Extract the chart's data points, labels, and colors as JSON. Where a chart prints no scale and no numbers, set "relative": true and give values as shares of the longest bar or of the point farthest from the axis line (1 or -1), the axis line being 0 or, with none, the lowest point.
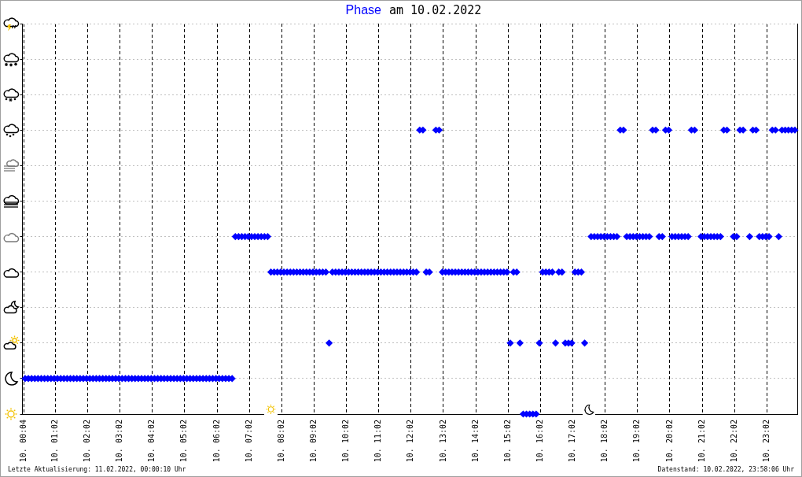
{
  "chart_data": {
    "type": "scatter",
    "title": "am 10.02.2022",
    "annotations": [
      "Letzte Aktualisierung: 11.02.2022, 00:00:10 Uhr",
      "Datenstand: 10.02.2022, 23:58:06 Uhr"
    ],
    "marker": "diamond",
    "grid": true,
    "relative": true,
    "xlim": [
      "2022-02-10T00:01",
      "2022-02-10T23:59"
    ],
    "xticks": [
      {
        "value": "2022-02-10T00:04",
        "label": "10. 00:04"
      },
      {
        "value": "2022-02-10T01:02",
        "label": "10. 01:02"
      },
      {
        "value": "2022-02-10T02:02",
        "label": "10. 02:02"
      },
      {
        "value": "2022-02-10T03:02",
        "label": "10. 03:02"
      },
      {
        "value": "2022-02-10T04:02",
        "label": "10. 04:02"
      },
      {
        "value": "2022-02-10T05:02",
        "label": "10. 05:02"
      },
      {
        "value": "2022-02-10T06:02",
        "label": "10. 06:02"
      },
      {
        "value": "2022-02-10T07:02",
        "label": "10. 07:02"
      },
      {
        "value": "2022-02-10T08:02",
        "label": "10. 08:02"
      },
      {
        "value": "2022-02-10T09:02",
        "label": "10. 09:02"
      },
      {
        "value": "2022-02-10T10:02",
        "label": "10. 10:02"
      },
      {
        "value": "2022-02-10T11:02",
        "label": "10. 11:02"
      },
      {
        "value": "2022-02-10T12:02",
        "label": "10. 12:02"
      },
      {
        "value": "2022-02-10T13:02",
        "label": "10. 13:02"
      },
      {
        "value": "2022-02-10T14:02",
        "label": "10. 14:02"
      },
      {
        "value": "2022-02-10T15:02",
        "label": "10. 15:02"
      },
      {
        "value": "2022-02-10T16:02",
        "label": "10. 16:02"
      },
      {
        "value": "2022-02-10T17:02",
        "label": "10. 17:02"
      },
      {
        "value": "2022-02-10T18:02",
        "label": "10. 18:02"
      },
      {
        "value": "2022-02-10T19:02",
        "label": "10. 19:02"
      },
      {
        "value": "2022-02-10T20:02",
        "label": "10. 20:02"
      },
      {
        "value": "2022-02-10T21:02",
        "label": "10. 21:02"
      },
      {
        "value": "2022-02-10T22:02",
        "label": "10. 22:02"
      },
      {
        "value": "2022-02-10T23:02",
        "label": "10. 23:02"
      }
    ],
    "x": [
      "2022-02-10T00:06",
      "2022-02-10T00:12",
      "2022-02-10T00:18",
      "2022-02-10T00:24",
      "2022-02-10T00:30",
      "2022-02-10T00:36",
      "2022-02-10T00:42",
      "2022-02-10T00:48",
      "2022-02-10T00:54",
      "2022-02-10T01:00",
      "2022-02-10T01:06",
      "2022-02-10T01:12",
      "2022-02-10T01:18",
      "2022-02-10T01:24",
      "2022-02-10T01:30",
      "2022-02-10T01:36",
      "2022-02-10T01:42",
      "2022-02-10T01:48",
      "2022-02-10T01:54",
      "2022-02-10T02:00",
      "2022-02-10T02:06",
      "2022-02-10T02:12",
      "2022-02-10T02:18",
      "2022-02-10T02:24",
      "2022-02-10T02:30",
      "2022-02-10T02:36",
      "2022-02-10T02:42",
      "2022-02-10T02:48",
      "2022-02-10T02:54",
      "2022-02-10T03:00",
      "2022-02-10T03:06",
      "2022-02-10T03:12",
      "2022-02-10T03:18",
      "2022-02-10T03:24",
      "2022-02-10T03:30",
      "2022-02-10T03:36",
      "2022-02-10T03:42",
      "2022-02-10T03:48",
      "2022-02-10T03:54",
      "2022-02-10T04:00",
      "2022-02-10T04:06",
      "2022-02-10T04:12",
      "2022-02-10T04:18",
      "2022-02-10T04:24",
      "2022-02-10T04:30",
      "2022-02-10T04:36",
      "2022-02-10T04:42",
      "2022-02-10T04:48",
      "2022-02-10T04:54",
      "2022-02-10T05:00",
      "2022-02-10T05:06",
      "2022-02-10T05:12",
      "2022-02-10T05:18",
      "2022-02-10T05:24",
      "2022-02-10T05:30",
      "2022-02-10T05:36",
      "2022-02-10T05:42",
      "2022-02-10T05:48",
      "2022-02-10T05:54",
      "2022-02-10T06:00",
      "2022-02-10T06:06",
      "2022-02-10T06:12",
      "2022-02-10T06:18",
      "2022-02-10T06:24",
      "2022-02-10T06:30",
      "2022-02-10T06:36",
      "2022-02-10T06:42",
      "2022-02-10T06:48",
      "2022-02-10T06:54",
      "2022-02-10T07:00",
      "2022-02-10T07:06",
      "2022-02-10T07:12",
      "2022-02-10T07:18",
      "2022-02-10T07:24",
      "2022-02-10T07:30",
      "2022-02-10T07:36",
      "2022-02-10T07:42",
      "2022-02-10T07:48",
      "2022-02-10T07:54",
      "2022-02-10T08:00",
      "2022-02-10T08:06",
      "2022-02-10T08:12",
      "2022-02-10T08:18",
      "2022-02-10T08:24",
      "2022-02-10T08:30",
      "2022-02-10T08:36",
      "2022-02-10T08:42",
      "2022-02-10T08:48",
      "2022-02-10T08:54",
      "2022-02-10T09:00",
      "2022-02-10T09:06",
      "2022-02-10T09:12",
      "2022-02-10T09:18",
      "2022-02-10T09:24",
      "2022-02-10T09:30",
      "2022-02-10T09:36",
      "2022-02-10T09:42",
      "2022-02-10T09:48",
      "2022-02-10T09:54",
      "2022-02-10T10:00",
      "2022-02-10T10:06",
      "2022-02-10T10:12",
      "2022-02-10T10:18",
      "2022-02-10T10:24",
      "2022-02-10T10:30",
      "2022-02-10T10:36",
      "2022-02-10T10:42",
      "2022-02-10T10:48",
      "2022-02-10T10:54",
      "2022-02-10T11:00",
      "2022-02-10T11:06",
      "2022-02-10T11:12",
      "2022-02-10T11:18",
      "2022-02-10T11:24",
      "2022-02-10T11:30",
      "2022-02-10T11:36",
      "2022-02-10T11:42",
      "2022-02-10T11:48",
      "2022-02-10T11:54",
      "2022-02-10T12:00",
      "2022-02-10T12:06",
      "2022-02-10T12:12",
      "2022-02-10T12:18",
      "2022-02-10T12:24",
      "2022-02-10T12:30",
      "2022-02-10T12:36",
      "2022-02-10T12:48",
      "2022-02-10T12:54",
      "2022-02-10T13:00",
      "2022-02-10T13:06",
      "2022-02-10T13:12",
      "2022-02-10T13:18",
      "2022-02-10T13:24",
      "2022-02-10T13:30",
      "2022-02-10T13:36",
      "2022-02-10T13:42",
      "2022-02-10T13:48",
      "2022-02-10T13:54",
      "2022-02-10T14:00",
      "2022-02-10T14:06",
      "2022-02-10T14:12",
      "2022-02-10T14:18",
      "2022-02-10T14:24",
      "2022-02-10T14:30",
      "2022-02-10T14:36",
      "2022-02-10T14:42",
      "2022-02-10T14:48",
      "2022-02-10T14:54",
      "2022-02-10T15:00",
      "2022-02-10T15:06",
      "2022-02-10T15:12",
      "2022-02-10T15:18",
      "2022-02-10T15:24",
      "2022-02-10T15:30",
      "2022-02-10T15:36",
      "2022-02-10T15:42",
      "2022-02-10T15:48",
      "2022-02-10T15:54",
      "2022-02-10T16:00",
      "2022-02-10T16:06",
      "2022-02-10T16:12",
      "2022-02-10T16:18",
      "2022-02-10T16:24",
      "2022-02-10T16:30",
      "2022-02-10T16:36",
      "2022-02-10T16:42",
      "2022-02-10T16:48",
      "2022-02-10T16:54",
      "2022-02-10T17:00",
      "2022-02-10T17:06",
      "2022-02-10T17:12",
      "2022-02-10T17:18",
      "2022-02-10T17:24",
      "2022-02-10T17:36",
      "2022-02-10T17:42",
      "2022-02-10T17:48",
      "2022-02-10T17:54",
      "2022-02-10T18:00",
      "2022-02-10T18:06",
      "2022-02-10T18:12",
      "2022-02-10T18:18",
      "2022-02-10T18:24",
      "2022-02-10T18:30",
      "2022-02-10T18:36",
      "2022-02-10T18:42",
      "2022-02-10T18:48",
      "2022-02-10T18:54",
      "2022-02-10T19:00",
      "2022-02-10T19:06",
      "2022-02-10T19:12",
      "2022-02-10T19:18",
      "2022-02-10T19:24",
      "2022-02-10T19:30",
      "2022-02-10T19:36",
      "2022-02-10T19:42",
      "2022-02-10T19:48",
      "2022-02-10T19:54",
      "2022-02-10T20:00",
      "2022-02-10T20:06",
      "2022-02-10T20:12",
      "2022-02-10T20:18",
      "2022-02-10T20:24",
      "2022-02-10T20:30",
      "2022-02-10T20:36",
      "2022-02-10T20:42",
      "2022-02-10T20:48",
      "2022-02-10T21:00",
      "2022-02-10T21:06",
      "2022-02-10T21:12",
      "2022-02-10T21:18",
      "2022-02-10T21:24",
      "2022-02-10T21:30",
      "2022-02-10T21:36",
      "2022-02-10T21:42",
      "2022-02-10T21:48",
      "2022-02-10T22:00",
      "2022-02-10T22:06",
      "2022-02-10T22:12",
      "2022-02-10T22:18",
      "2022-02-10T22:30",
      "2022-02-10T22:36",
      "2022-02-10T22:42",
      "2022-02-10T22:48",
      "2022-02-10T22:54",
      "2022-02-10T23:00",
      "2022-02-10T23:06",
      "2022-02-10T23:12",
      "2022-02-10T23:18",
      "2022-02-10T23:24",
      "2022-02-10T23:30",
      "2022-02-10T23:36",
      "2022-02-10T23:42",
      "2022-02-10T23:48",
      "2022-02-10T23:54"
    ],
    "series": [
      {
        "name": "Phase",
        "color": "#0000ff",
        "values": [
          0.125,
          0.125,
          0.125,
          0.125,
          0.125,
          0.125,
          0.125,
          0.125,
          0.125,
          0.125,
          0.125,
          0.125,
          0.125,
          0.125,
          0.125,
          0.125,
          0.125,
          0.125,
          0.125,
          0.125,
          0.125,
          0.125,
          0.125,
          0.125,
          0.125,
          0.125,
          0.125,
          0.125,
          0.125,
          0.125,
          0.125,
          0.125,
          0.125,
          0.125,
          0.125,
          0.125,
          0.125,
          0.125,
          0.125,
          0.125,
          0.125,
          0.125,
          0.125,
          0.125,
          0.125,
          0.125,
          0.125,
          0.125,
          0.125,
          0.125,
          0.125,
          0.125,
          0.125,
          0.125,
          0.125,
          0.125,
          0.125,
          0.125,
          0.125,
          0.125,
          0.125,
          0.125,
          0.125,
          0.125,
          0.125,
          0.625,
          0.625,
          0.625,
          0.625,
          0.625,
          0.625,
          0.625,
          0.625,
          0.625,
          0.625,
          0.625,
          0.5,
          0.5,
          0.5,
          0.5,
          0.5,
          0.5,
          0.5,
          0.5,
          0.5,
          0.5,
          0.5,
          0.5,
          0.5,
          0.5,
          0.5,
          0.5,
          0.5,
          0.5,
          0.25,
          0.5,
          0.5,
          0.5,
          0.5,
          0.5,
          0.5,
          0.5,
          0.5,
          0.5,
          0.5,
          0.5,
          0.5,
          0.5,
          0.5,
          0.5,
          0.5,
          0.5,
          0.5,
          0.5,
          0.5,
          0.5,
          0.5,
          0.5,
          0.5,
          0.5,
          0.5,
          0.5,
          1,
          1,
          0.5,
          0.5,
          1,
          1,
          0.5,
          0.5,
          0.5,
          0.5,
          0.5,
          0.5,
          0.5,
          0.5,
          0.5,
          0.5,
          0.5,
          0.5,
          0.5,
          0.5,
          0.5,
          0.5,
          0.5,
          0.5,
          0.5,
          0.5,
          0.5,
          0.25,
          0.5,
          0.5,
          0.25,
          0,
          0,
          0,
          0,
          0,
          0.25,
          0.5,
          0.5,
          0.5,
          0.5,
          0.25,
          0.5,
          0.5,
          0.25,
          0.25,
          0.25,
          0.5,
          0.5,
          0.5,
          0.25,
          0.625,
          0.625,
          0.625,
          0.625,
          0.625,
          0.625,
          0.625,
          0.625,
          0.625,
          1,
          1,
          0.625,
          0.625,
          0.625,
          0.625,
          0.625,
          0.625,
          0.625,
          0.625,
          1,
          1,
          0.625,
          0.625,
          1,
          1,
          0.625,
          0.625,
          0.625,
          0.625,
          0.625,
          0.625,
          1,
          1,
          0.625,
          0.625,
          0.625,
          0.625,
          0.625,
          0.625,
          0.625,
          1,
          1,
          0.625,
          0.625,
          1,
          1,
          0.625,
          1,
          1,
          0.625,
          0.625,
          0.625,
          0.625,
          1,
          1,
          0.625,
          1,
          1,
          1,
          1,
          1
        ]
      }
    ]
  }
}
